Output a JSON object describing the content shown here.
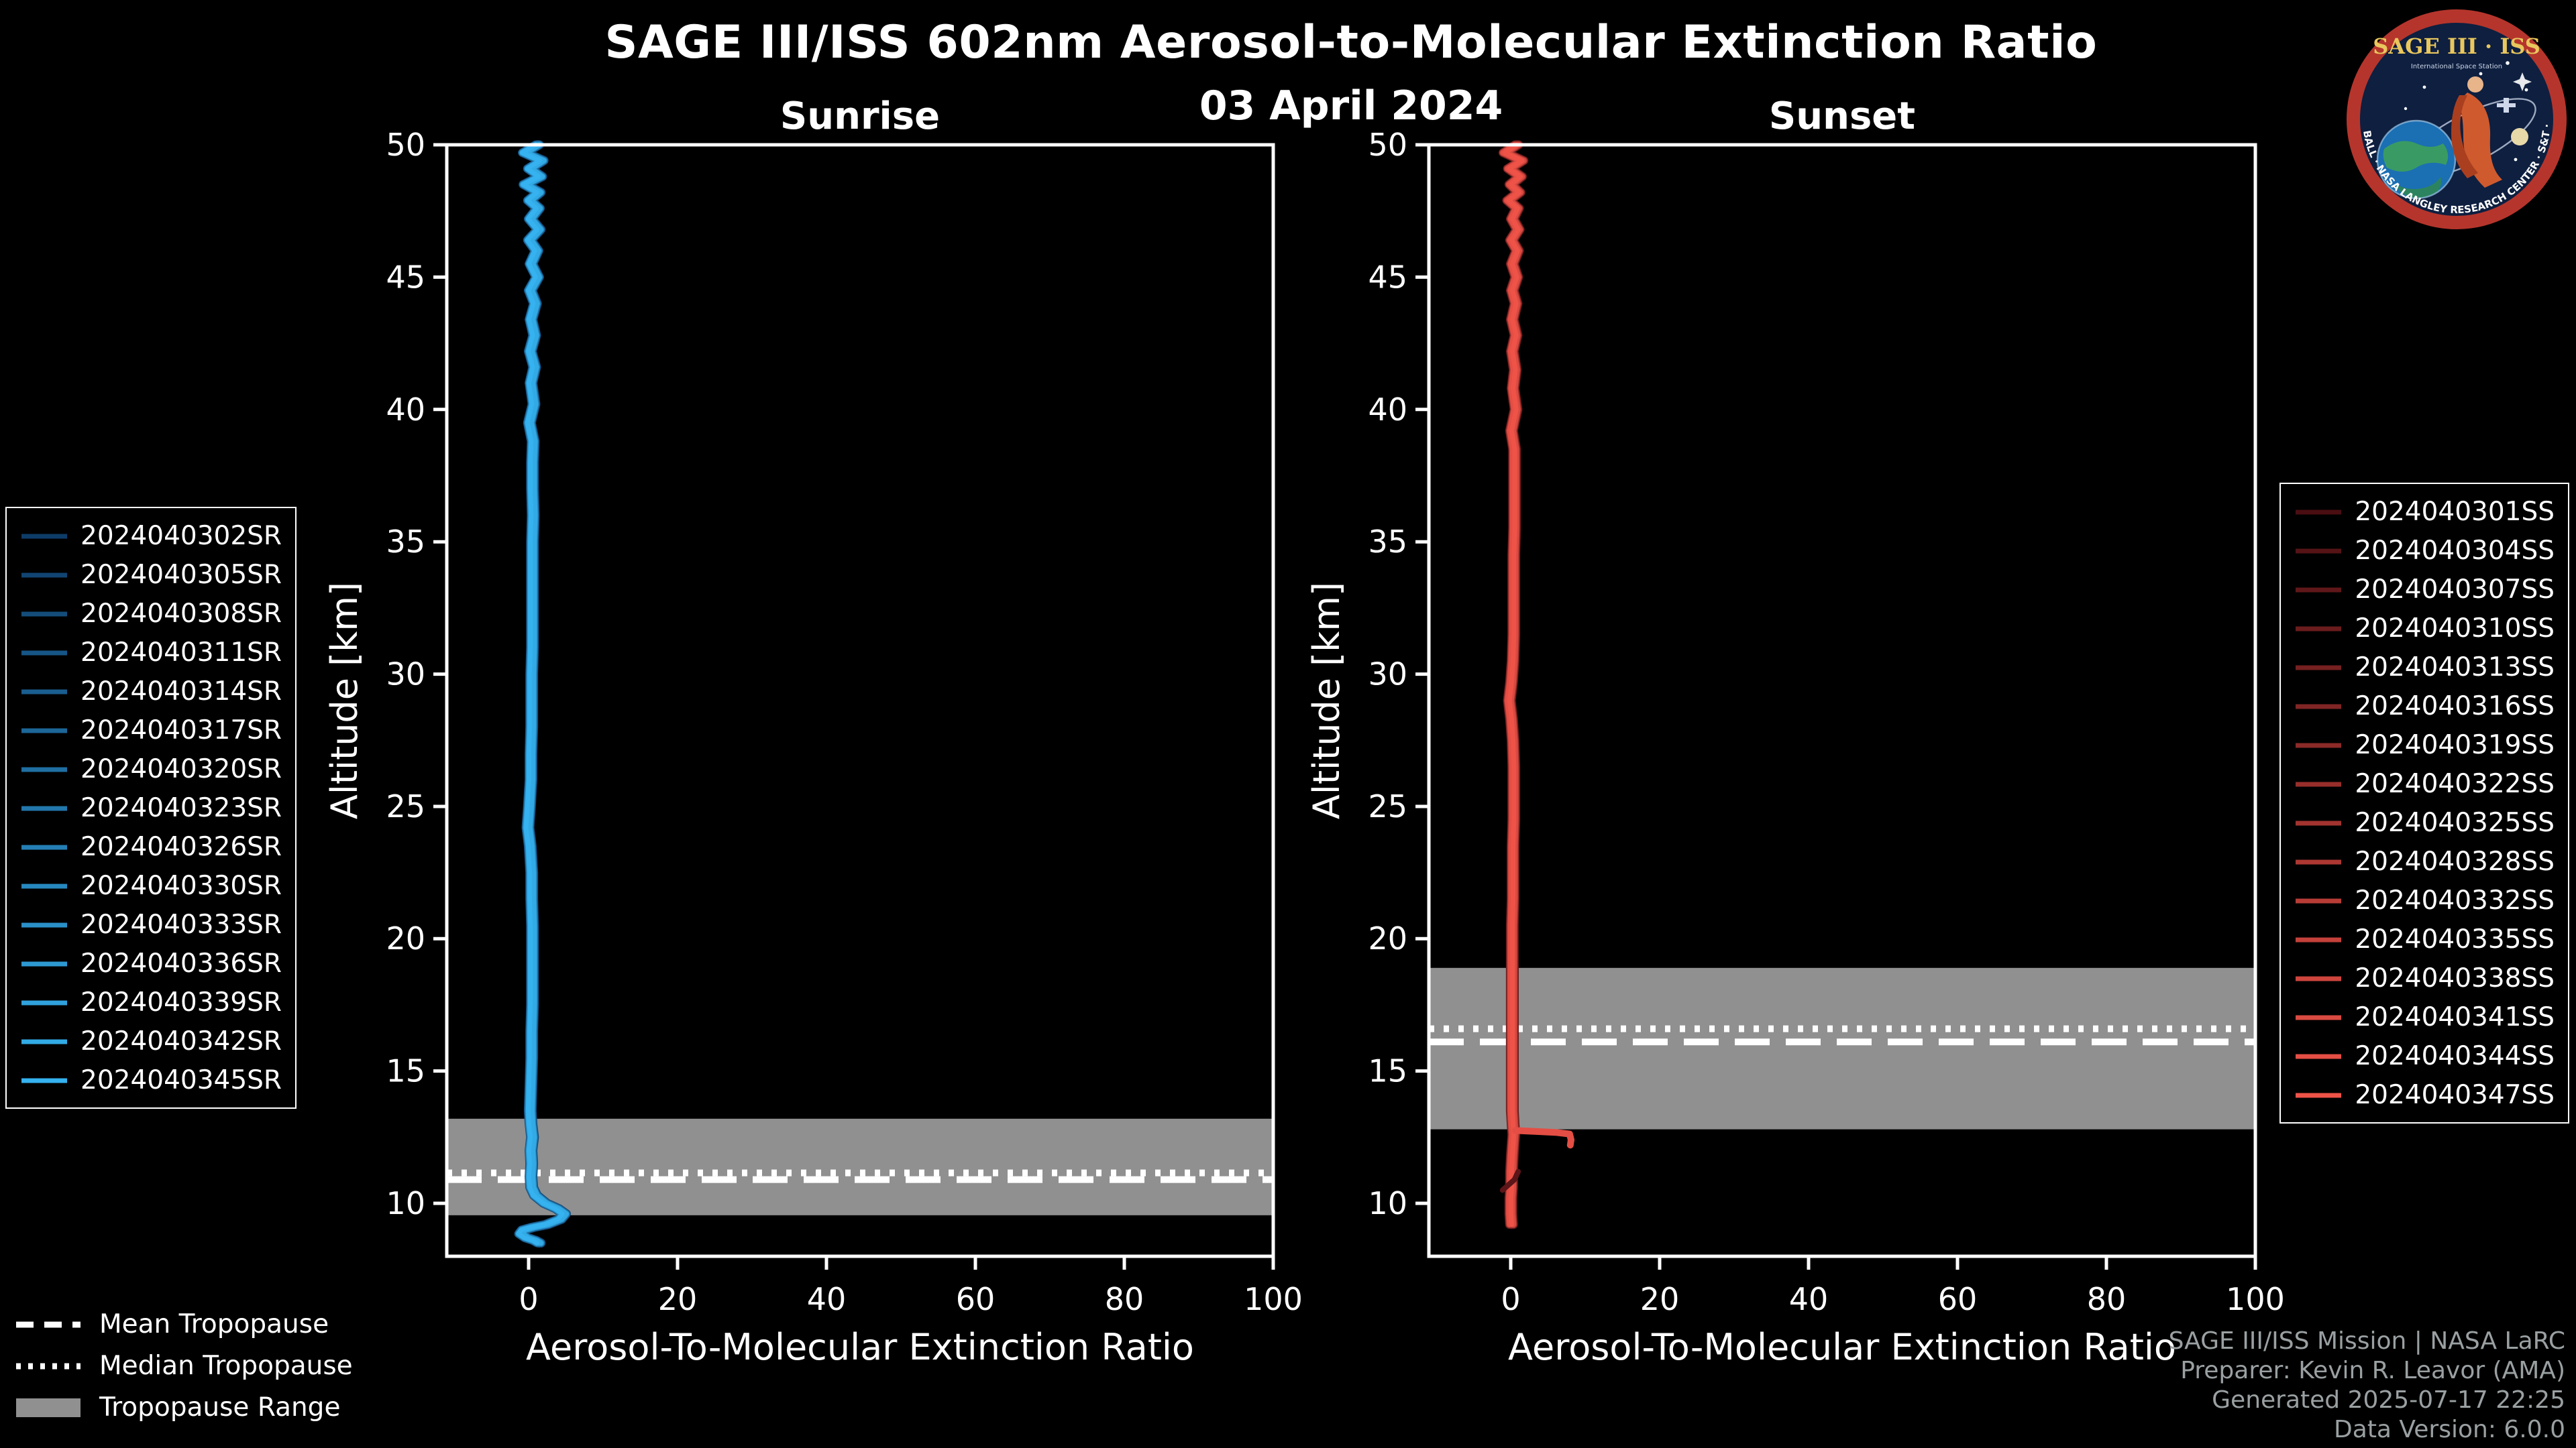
{
  "header": {
    "title": "SAGE III/ISS 602nm Aerosol-to-Molecular Extinction Ratio",
    "date": "03 April 2024"
  },
  "logo": {
    "title": "SAGE III · ISS",
    "subtitle": "International Space Station",
    "ring_text": "BALL · NASA LANGLEY RESEARCH CENTER · S&T · ESA"
  },
  "styles": {
    "background": "#000000",
    "foreground": "#ffffff",
    "band_color": "#909090",
    "credits_color": "#9aa0a2",
    "sunrise_color_range": [
      "#0e3c68",
      "#35b2ef"
    ],
    "sunset_color_range": [
      "#4a0e12",
      "#ef5348"
    ]
  },
  "chart_data": [
    {
      "type": "line",
      "title": "Sunrise",
      "xlabel": "Aerosol-To-Molecular Extinction Ratio",
      "ylabel": "Altitude [km]",
      "xlim": [
        -11,
        100
      ],
      "ylim": [
        8,
        50
      ],
      "xticks": [
        0,
        20,
        40,
        60,
        80,
        100
      ],
      "yticks": [
        10,
        15,
        20,
        25,
        30,
        35,
        40,
        45,
        50
      ],
      "grid": false,
      "legend_position": "outside-left",
      "tropopause": {
        "mean": 10.9,
        "median": 11.15,
        "range": [
          9.55,
          13.2
        ]
      },
      "series": [
        {
          "name": "2024040302SR",
          "color": "#0e3c68"
        },
        {
          "name": "2024040305SR",
          "color": "#114472"
        },
        {
          "name": "2024040308SR",
          "color": "#144d7b"
        },
        {
          "name": "2024040311SR",
          "color": "#165585"
        },
        {
          "name": "2024040314SR",
          "color": "#195e8f"
        },
        {
          "name": "2024040317SR",
          "color": "#1c6698"
        },
        {
          "name": "2024040320SR",
          "color": "#1f6fa2"
        },
        {
          "name": "2024040323SR",
          "color": "#2277ac"
        },
        {
          "name": "2024040326SR",
          "color": "#247fb5"
        },
        {
          "name": "2024040330SR",
          "color": "#2788bf"
        },
        {
          "name": "2024040333SR",
          "color": "#2a90c8"
        },
        {
          "name": "2024040336SR",
          "color": "#2d99d2"
        },
        {
          "name": "2024040339SR",
          "color": "#30a1dc"
        },
        {
          "name": "2024040342SR",
          "color": "#32aae5"
        },
        {
          "name": "2024040345SR",
          "color": "#35b2ef"
        }
      ],
      "profile": [
        [
          1.2,
          50
        ],
        [
          -0.6,
          49.7
        ],
        [
          1.8,
          49.4
        ],
        [
          0.1,
          49.1
        ],
        [
          1.6,
          48.8
        ],
        [
          -0.5,
          48.5
        ],
        [
          1.4,
          48.2
        ],
        [
          0.1,
          47.9
        ],
        [
          1.3,
          47.6
        ],
        [
          0.2,
          47.2
        ],
        [
          1.4,
          46.8
        ],
        [
          0.1,
          46.4
        ],
        [
          1.1,
          46
        ],
        [
          0.3,
          45.5
        ],
        [
          1.2,
          45
        ],
        [
          0.2,
          44.5
        ],
        [
          0.9,
          44
        ],
        [
          0.3,
          43.4
        ],
        [
          0.8,
          42.8
        ],
        [
          0.2,
          42.2
        ],
        [
          0.8,
          41.6
        ],
        [
          0.3,
          41
        ],
        [
          0.7,
          40.2
        ],
        [
          0.1,
          39.5
        ],
        [
          0.6,
          38.8
        ],
        [
          0.5,
          38
        ],
        [
          0.5,
          37
        ],
        [
          0.6,
          36
        ],
        [
          0.5,
          35
        ],
        [
          0.5,
          34
        ],
        [
          0.5,
          33
        ],
        [
          0.5,
          32
        ],
        [
          0.5,
          31
        ],
        [
          0.4,
          30
        ],
        [
          0.4,
          29
        ],
        [
          0.4,
          28
        ],
        [
          0.3,
          27
        ],
        [
          0.3,
          26
        ],
        [
          0.1,
          25
        ],
        [
          -0.1,
          24.2
        ],
        [
          0.2,
          23.5
        ],
        [
          0.4,
          22.5
        ],
        [
          0.4,
          21.5
        ],
        [
          0.5,
          20.5
        ],
        [
          0.5,
          19.5
        ],
        [
          0.5,
          18.5
        ],
        [
          0.5,
          17.5
        ],
        [
          0.4,
          16.5
        ],
        [
          0.4,
          15.5
        ],
        [
          0.3,
          14.5
        ],
        [
          0.2,
          13.5
        ],
        [
          0.3,
          13
        ],
        [
          0.5,
          12.5
        ],
        [
          0.3,
          12
        ],
        [
          0.4,
          11.5
        ],
        [
          0.3,
          11
        ],
        [
          0.4,
          10.6
        ],
        [
          0.9,
          10.3
        ],
        [
          2.2,
          10
        ],
        [
          3.8,
          9.8
        ],
        [
          4.8,
          9.6
        ],
        [
          4.2,
          9.4
        ],
        [
          2.4,
          9.2
        ],
        [
          0.6,
          9.1
        ],
        [
          -0.7,
          9
        ],
        [
          -1.1,
          8.85
        ],
        [
          -0.3,
          8.7
        ],
        [
          0.8,
          8.6
        ],
        [
          1.4,
          8.5
        ]
      ],
      "extra": []
    },
    {
      "type": "line",
      "title": "Sunset",
      "xlabel": "Aerosol-To-Molecular Extinction Ratio",
      "ylabel": "Altitude [km]",
      "xlim": [
        -11,
        100
      ],
      "ylim": [
        8,
        50
      ],
      "xticks": [
        0,
        20,
        40,
        60,
        80,
        100
      ],
      "yticks": [
        10,
        15,
        20,
        25,
        30,
        35,
        40,
        45,
        50
      ],
      "grid": false,
      "legend_position": "outside-right",
      "tropopause": {
        "mean": 16.1,
        "median": 16.6,
        "range": [
          12.8,
          18.9
        ]
      },
      "series": [
        {
          "name": "2024040301SS",
          "color": "#4a0e12"
        },
        {
          "name": "2024040304SS",
          "color": "#551316"
        },
        {
          "name": "2024040307SS",
          "color": "#601719"
        },
        {
          "name": "2024040310SS",
          "color": "#6b1c1d"
        },
        {
          "name": "2024040313SS",
          "color": "#762020"
        },
        {
          "name": "2024040316SS",
          "color": "#812524"
        },
        {
          "name": "2024040319SS",
          "color": "#8c2a28"
        },
        {
          "name": "2024040322SS",
          "color": "#972e2b"
        },
        {
          "name": "2024040325SS",
          "color": "#a2332f"
        },
        {
          "name": "2024040328SS",
          "color": "#ad3732"
        },
        {
          "name": "2024040332SS",
          "color": "#b83c36"
        },
        {
          "name": "2024040335SS",
          "color": "#c3413a"
        },
        {
          "name": "2024040338SS",
          "color": "#ce453d"
        },
        {
          "name": "2024040341SS",
          "color": "#d94a41"
        },
        {
          "name": "2024040344SS",
          "color": "#e44e44"
        },
        {
          "name": "2024040347SS",
          "color": "#ef5348"
        }
      ],
      "profile": [
        [
          0.8,
          50
        ],
        [
          -0.8,
          49.7
        ],
        [
          1.5,
          49.4
        ],
        [
          -0.2,
          49.1
        ],
        [
          1.3,
          48.8
        ],
        [
          0,
          48.5
        ],
        [
          1.1,
          48.2
        ],
        [
          -0.3,
          47.9
        ],
        [
          0.9,
          47.6
        ],
        [
          0.2,
          47.2
        ],
        [
          1,
          46.8
        ],
        [
          0.1,
          46.4
        ],
        [
          0.9,
          46
        ],
        [
          0.2,
          45.5
        ],
        [
          0.8,
          45
        ],
        [
          0.2,
          44.5
        ],
        [
          0.7,
          44
        ],
        [
          0.2,
          43.4
        ],
        [
          0.7,
          42.8
        ],
        [
          0.2,
          42.2
        ],
        [
          0.6,
          41.5
        ],
        [
          0.3,
          40.8
        ],
        [
          0.7,
          40
        ],
        [
          0.1,
          39.2
        ],
        [
          0.5,
          38.5
        ],
        [
          0.5,
          37.5
        ],
        [
          0.5,
          36.5
        ],
        [
          0.5,
          35.5
        ],
        [
          0.4,
          34.5
        ],
        [
          0.4,
          33.5
        ],
        [
          0.4,
          32.5
        ],
        [
          0.4,
          31.5
        ],
        [
          0.3,
          30.5
        ],
        [
          0.1,
          29.7
        ],
        [
          -0.2,
          29
        ],
        [
          0.1,
          28.3
        ],
        [
          0.3,
          27.5
        ],
        [
          0.4,
          26.5
        ],
        [
          0.4,
          25.5
        ],
        [
          0.4,
          24.5
        ],
        [
          0.3,
          23.5
        ],
        [
          0.3,
          22.5
        ],
        [
          0.3,
          21.5
        ],
        [
          0.2,
          20.5
        ],
        [
          0.2,
          19.5
        ],
        [
          0.2,
          18.5
        ],
        [
          0.2,
          17.5
        ],
        [
          0.2,
          16.5
        ],
        [
          0.2,
          15.5
        ],
        [
          0.2,
          14.5
        ],
        [
          0.2,
          13.5
        ],
        [
          0.3,
          13
        ],
        [
          0.4,
          12.6
        ],
        [
          0.3,
          12.2
        ],
        [
          0.2,
          11.8
        ],
        [
          0.1,
          11.2
        ],
        [
          0.1,
          10.6
        ],
        [
          0,
          10.2
        ],
        [
          0,
          9.6
        ],
        [
          0.1,
          9.2
        ]
      ],
      "extra": [
        {
          "name": "surface-spur",
          "color": "#e44e44",
          "width": 5,
          "points": [
            [
              0.6,
              12.75
            ],
            [
              3,
              12.72
            ],
            [
              6,
              12.68
            ],
            [
              7.9,
              12.62
            ],
            [
              8.1,
              12.4
            ],
            [
              8,
              12.2
            ]
          ]
        },
        {
          "name": "low-hook",
          "color": "#5c1518",
          "width": 4,
          "points": [
            [
              1,
              11.2
            ],
            [
              0.5,
              10.9
            ],
            [
              -0.3,
              10.7
            ],
            [
              -1.1,
              10.5
            ]
          ]
        }
      ]
    }
  ],
  "tropopause_legend": {
    "items": [
      {
        "label": "Mean Tropopause",
        "style": "dashed"
      },
      {
        "label": "Median Tropopause",
        "style": "dotted"
      },
      {
        "label": "Tropopause Range",
        "style": "band"
      }
    ]
  },
  "credits": {
    "lines": [
      "SAGE III/ISS Mission | NASA LaRC",
      "Preparer: Kevin R. Leavor (AMA)",
      "Generated 2025-07-17 22:25",
      "Data Version: 6.0.0"
    ]
  }
}
